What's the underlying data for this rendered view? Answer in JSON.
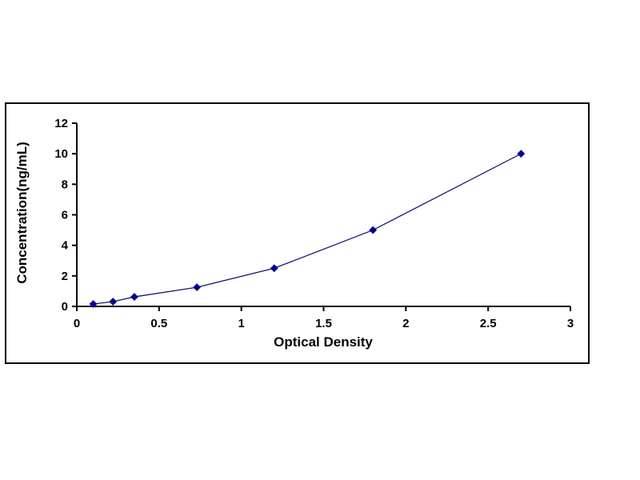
{
  "chart_data": {
    "type": "line",
    "title": "",
    "x": [
      0.1,
      0.22,
      0.35,
      0.73,
      1.2,
      1.8,
      2.7
    ],
    "y": [
      0.156,
      0.312,
      0.625,
      1.25,
      2.5,
      5,
      10
    ],
    "xlabel": "Optical Density",
    "ylabel": "Concentration(ng/mL)",
    "xlim": [
      0,
      3
    ],
    "ylim": [
      0,
      12
    ],
    "xticks": [
      0,
      0.5,
      1,
      1.5,
      2,
      2.5,
      3
    ],
    "yticks": [
      0,
      2,
      4,
      6,
      8,
      10,
      12
    ],
    "grid": false,
    "legend": null,
    "marker": "diamond",
    "line_color": "#191970",
    "marker_color": "#00008B",
    "axis_color": "#000000",
    "border_color": "#000000",
    "background_color": "#ffffff"
  }
}
